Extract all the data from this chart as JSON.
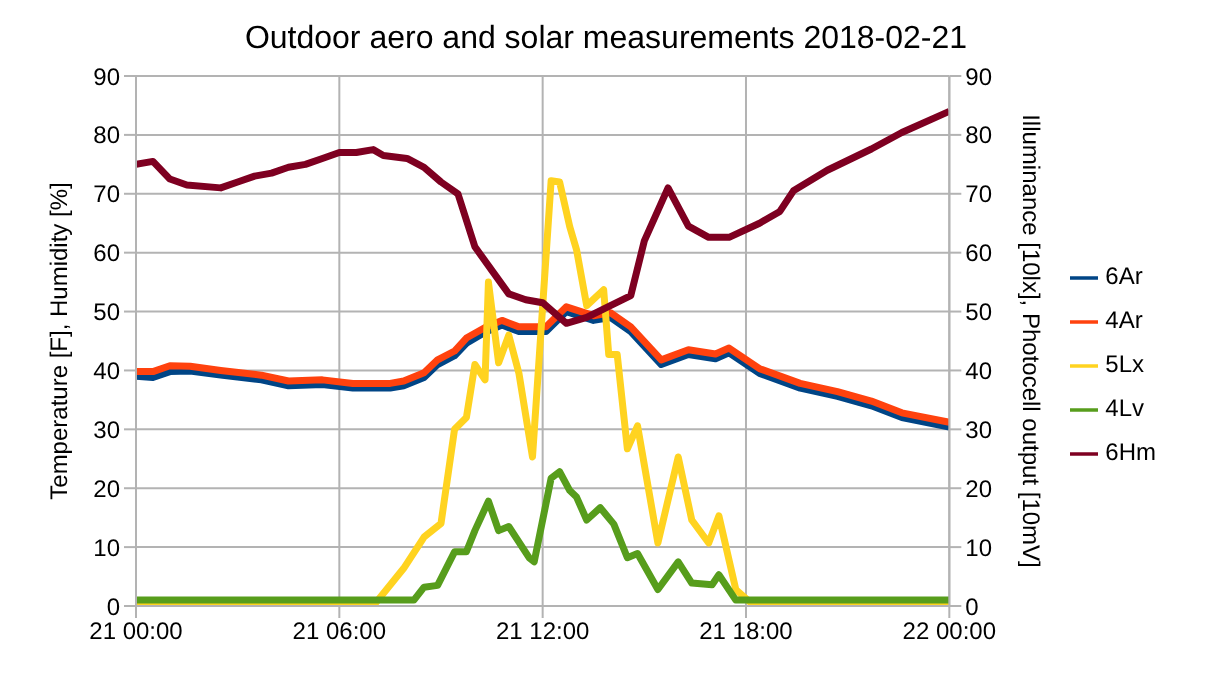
{
  "chart_data": {
    "type": "line",
    "title": "Outdoor aero and solar measurements 2018-02-21",
    "ylabel": "Temperature [F], Humidity [%]",
    "y2label": "Illuminance [10lx], Photocell output [10mV]",
    "xlim": [
      "2018-02-21T00:00",
      "2018-02-22T00:00"
    ],
    "xticks": [
      {
        "value": "2018-02-21T00:00",
        "label": "21 00:00"
      },
      {
        "value": "2018-02-21T06:00",
        "label": "21 06:00"
      },
      {
        "value": "2018-02-21T12:00",
        "label": "21 12:00"
      },
      {
        "value": "2018-02-21T18:00",
        "label": "21 18:00"
      },
      {
        "value": "2018-02-22T00:00",
        "label": "22 00:00"
      }
    ],
    "ylim": [
      0,
      90
    ],
    "yticks": [
      0,
      10,
      20,
      30,
      40,
      50,
      60,
      70,
      80,
      90
    ],
    "y2lim": [
      0,
      90
    ],
    "y2ticks": [
      0,
      10,
      20,
      30,
      40,
      50,
      60,
      70,
      80,
      90
    ],
    "grid": true,
    "legend": "right",
    "marker": "none",
    "line_style": "solid",
    "series": [
      {
        "name": "6Ar",
        "color": "#004586",
        "x": [
          "2018-02-21T00:00",
          "2018-02-21T00:30",
          "2018-02-21T01:00",
          "2018-02-21T01:36",
          "2018-02-21T02:30",
          "2018-02-21T03:42",
          "2018-02-21T04:30",
          "2018-02-21T05:30",
          "2018-02-21T06:24",
          "2018-02-21T07:30",
          "2018-02-21T07:54",
          "2018-02-21T08:30",
          "2018-02-21T08:54",
          "2018-02-21T09:24",
          "2018-02-21T09:45",
          "2018-02-21T10:18",
          "2018-02-21T10:48",
          "2018-02-21T11:18",
          "2018-02-21T12:06",
          "2018-02-21T12:42",
          "2018-02-21T13:30",
          "2018-02-21T14:00",
          "2018-02-21T14:36",
          "2018-02-21T15:30",
          "2018-02-21T16:18",
          "2018-02-21T17:06",
          "2018-02-21T17:30",
          "2018-02-21T18:24",
          "2018-02-21T19:36",
          "2018-02-21T20:42",
          "2018-02-21T21:42",
          "2018-02-21T22:36",
          "2018-02-22T00:00"
        ],
        "values": [
          39,
          38.8,
          39.8,
          39.9,
          39.2,
          38.4,
          37.4,
          37.6,
          37,
          37,
          37.4,
          38.8,
          41,
          42.5,
          44.6,
          46.5,
          47.7,
          46.6,
          46.6,
          50,
          48.5,
          49,
          46.6,
          41,
          42.7,
          42,
          43,
          39.5,
          37,
          35.6,
          34,
          32,
          30.4
        ]
      },
      {
        "name": "4Ar",
        "color": "#ff420e",
        "x": [
          "2018-02-21T00:00",
          "2018-02-21T00:30",
          "2018-02-21T01:00",
          "2018-02-21T01:36",
          "2018-02-21T02:30",
          "2018-02-21T03:42",
          "2018-02-21T04:30",
          "2018-02-21T05:30",
          "2018-02-21T06:24",
          "2018-02-21T07:30",
          "2018-02-21T07:54",
          "2018-02-21T08:30",
          "2018-02-21T08:54",
          "2018-02-21T09:24",
          "2018-02-21T09:45",
          "2018-02-21T10:18",
          "2018-02-21T10:48",
          "2018-02-21T11:18",
          "2018-02-21T12:06",
          "2018-02-21T12:42",
          "2018-02-21T13:30",
          "2018-02-21T14:00",
          "2018-02-21T14:36",
          "2018-02-21T15:30",
          "2018-02-21T16:18",
          "2018-02-21T17:06",
          "2018-02-21T17:30",
          "2018-02-21T18:24",
          "2018-02-21T19:36",
          "2018-02-21T20:42",
          "2018-02-21T21:42",
          "2018-02-21T22:36",
          "2018-02-22T00:00"
        ],
        "values": [
          39.8,
          39.8,
          40.8,
          40.7,
          40,
          39.2,
          38.2,
          38.4,
          37.8,
          37.8,
          38.2,
          39.6,
          41.8,
          43.3,
          45.5,
          47.3,
          48.5,
          47.4,
          47.4,
          50.8,
          49.3,
          49.8,
          47.4,
          41.8,
          43.5,
          42.8,
          43.8,
          40.3,
          37.8,
          36.4,
          34.8,
          32.8,
          31.2
        ]
      },
      {
        "name": "5Lx",
        "color": "#ffd320",
        "x": [
          "2018-02-21T00:00",
          "2018-02-21T07:00",
          "2018-02-21T07:54",
          "2018-02-21T08:30",
          "2018-02-21T09:00",
          "2018-02-21T09:24",
          "2018-02-21T09:45",
          "2018-02-21T10:00",
          "2018-02-21T10:18",
          "2018-02-21T10:24",
          "2018-02-21T10:42",
          "2018-02-21T11:00",
          "2018-02-21T11:18",
          "2018-02-21T11:42",
          "2018-02-21T12:15",
          "2018-02-21T12:30",
          "2018-02-21T12:48",
          "2018-02-21T13:00",
          "2018-02-21T13:18",
          "2018-02-21T13:48",
          "2018-02-21T13:57",
          "2018-02-21T14:12",
          "2018-02-21T14:30",
          "2018-02-21T14:48",
          "2018-02-21T15:24",
          "2018-02-21T16:00",
          "2018-02-21T16:24",
          "2018-02-21T16:54",
          "2018-02-21T17:12",
          "2018-02-21T17:42",
          "2018-02-21T18:15",
          "2018-02-22T00:00"
        ],
        "values": [
          0,
          0,
          6.4,
          11.7,
          14,
          30,
          32,
          41,
          38.4,
          55,
          41.3,
          46,
          39.5,
          25.3,
          72.2,
          72,
          64.4,
          60.5,
          51,
          53.7,
          42.7,
          42.7,
          26.7,
          30.6,
          10.7,
          25.3,
          14.6,
          10.7,
          15.3,
          2.8,
          0,
          0
        ]
      },
      {
        "name": "4Lv",
        "color": "#579d1c",
        "x": [
          "2018-02-21T00:00",
          "2018-02-21T08:12",
          "2018-02-21T08:30",
          "2018-02-21T08:54",
          "2018-02-21T09:24",
          "2018-02-21T09:45",
          "2018-02-21T10:00",
          "2018-02-21T10:24",
          "2018-02-21T10:42",
          "2018-02-21T11:00",
          "2018-02-21T11:36",
          "2018-02-21T11:45",
          "2018-02-21T12:15",
          "2018-02-21T12:30",
          "2018-02-21T12:48",
          "2018-02-21T13:00",
          "2018-02-21T13:18",
          "2018-02-21T13:42",
          "2018-02-21T14:06",
          "2018-02-21T14:30",
          "2018-02-21T14:48",
          "2018-02-21T15:24",
          "2018-02-21T16:00",
          "2018-02-21T16:24",
          "2018-02-21T17:00",
          "2018-02-21T17:12",
          "2018-02-21T17:42",
          "2018-02-22T00:00"
        ],
        "values": [
          1,
          1,
          3.2,
          3.5,
          9.2,
          9.2,
          12.8,
          17.8,
          12.8,
          13.5,
          8.2,
          7.5,
          21.7,
          22.8,
          19.6,
          18.5,
          14.6,
          16.7,
          13.9,
          8.2,
          8.9,
          2.8,
          7.5,
          3.9,
          3.6,
          5.3,
          1,
          1
        ]
      },
      {
        "name": "6Hm",
        "color": "#7e0021",
        "x": [
          "2018-02-21T00:00",
          "2018-02-21T00:30",
          "2018-02-21T01:00",
          "2018-02-21T01:30",
          "2018-02-21T02:30",
          "2018-02-21T03:00",
          "2018-02-21T03:30",
          "2018-02-21T04:00",
          "2018-02-21T04:30",
          "2018-02-21T05:00",
          "2018-02-21T05:30",
          "2018-02-21T06:00",
          "2018-02-21T06:30",
          "2018-02-21T07:00",
          "2018-02-21T07:18",
          "2018-02-21T08:00",
          "2018-02-21T08:30",
          "2018-02-21T09:00",
          "2018-02-21T09:30",
          "2018-02-21T10:00",
          "2018-02-21T10:30",
          "2018-02-21T11:00",
          "2018-02-21T11:30",
          "2018-02-21T12:00",
          "2018-02-21T12:42",
          "2018-02-21T13:18",
          "2018-02-21T14:00",
          "2018-02-21T14:36",
          "2018-02-21T15:00",
          "2018-02-21T15:42",
          "2018-02-21T16:18",
          "2018-02-21T16:54",
          "2018-02-21T17:30",
          "2018-02-21T18:24",
          "2018-02-21T19:00",
          "2018-02-21T19:24",
          "2018-02-21T20:24",
          "2018-02-21T21:42",
          "2018-02-21T22:36",
          "2018-02-22T00:00"
        ],
        "values": [
          75,
          75.5,
          72.5,
          71.5,
          71,
          72,
          73,
          73.5,
          74.5,
          75,
          76,
          77,
          77,
          77.5,
          76.5,
          76,
          74.5,
          72,
          70,
          61,
          57,
          53,
          52,
          51.5,
          48,
          49,
          51,
          52.7,
          62,
          71,
          64.5,
          62.6,
          62.6,
          65,
          67,
          70.5,
          74,
          77.6,
          80.4,
          84
        ]
      }
    ]
  }
}
